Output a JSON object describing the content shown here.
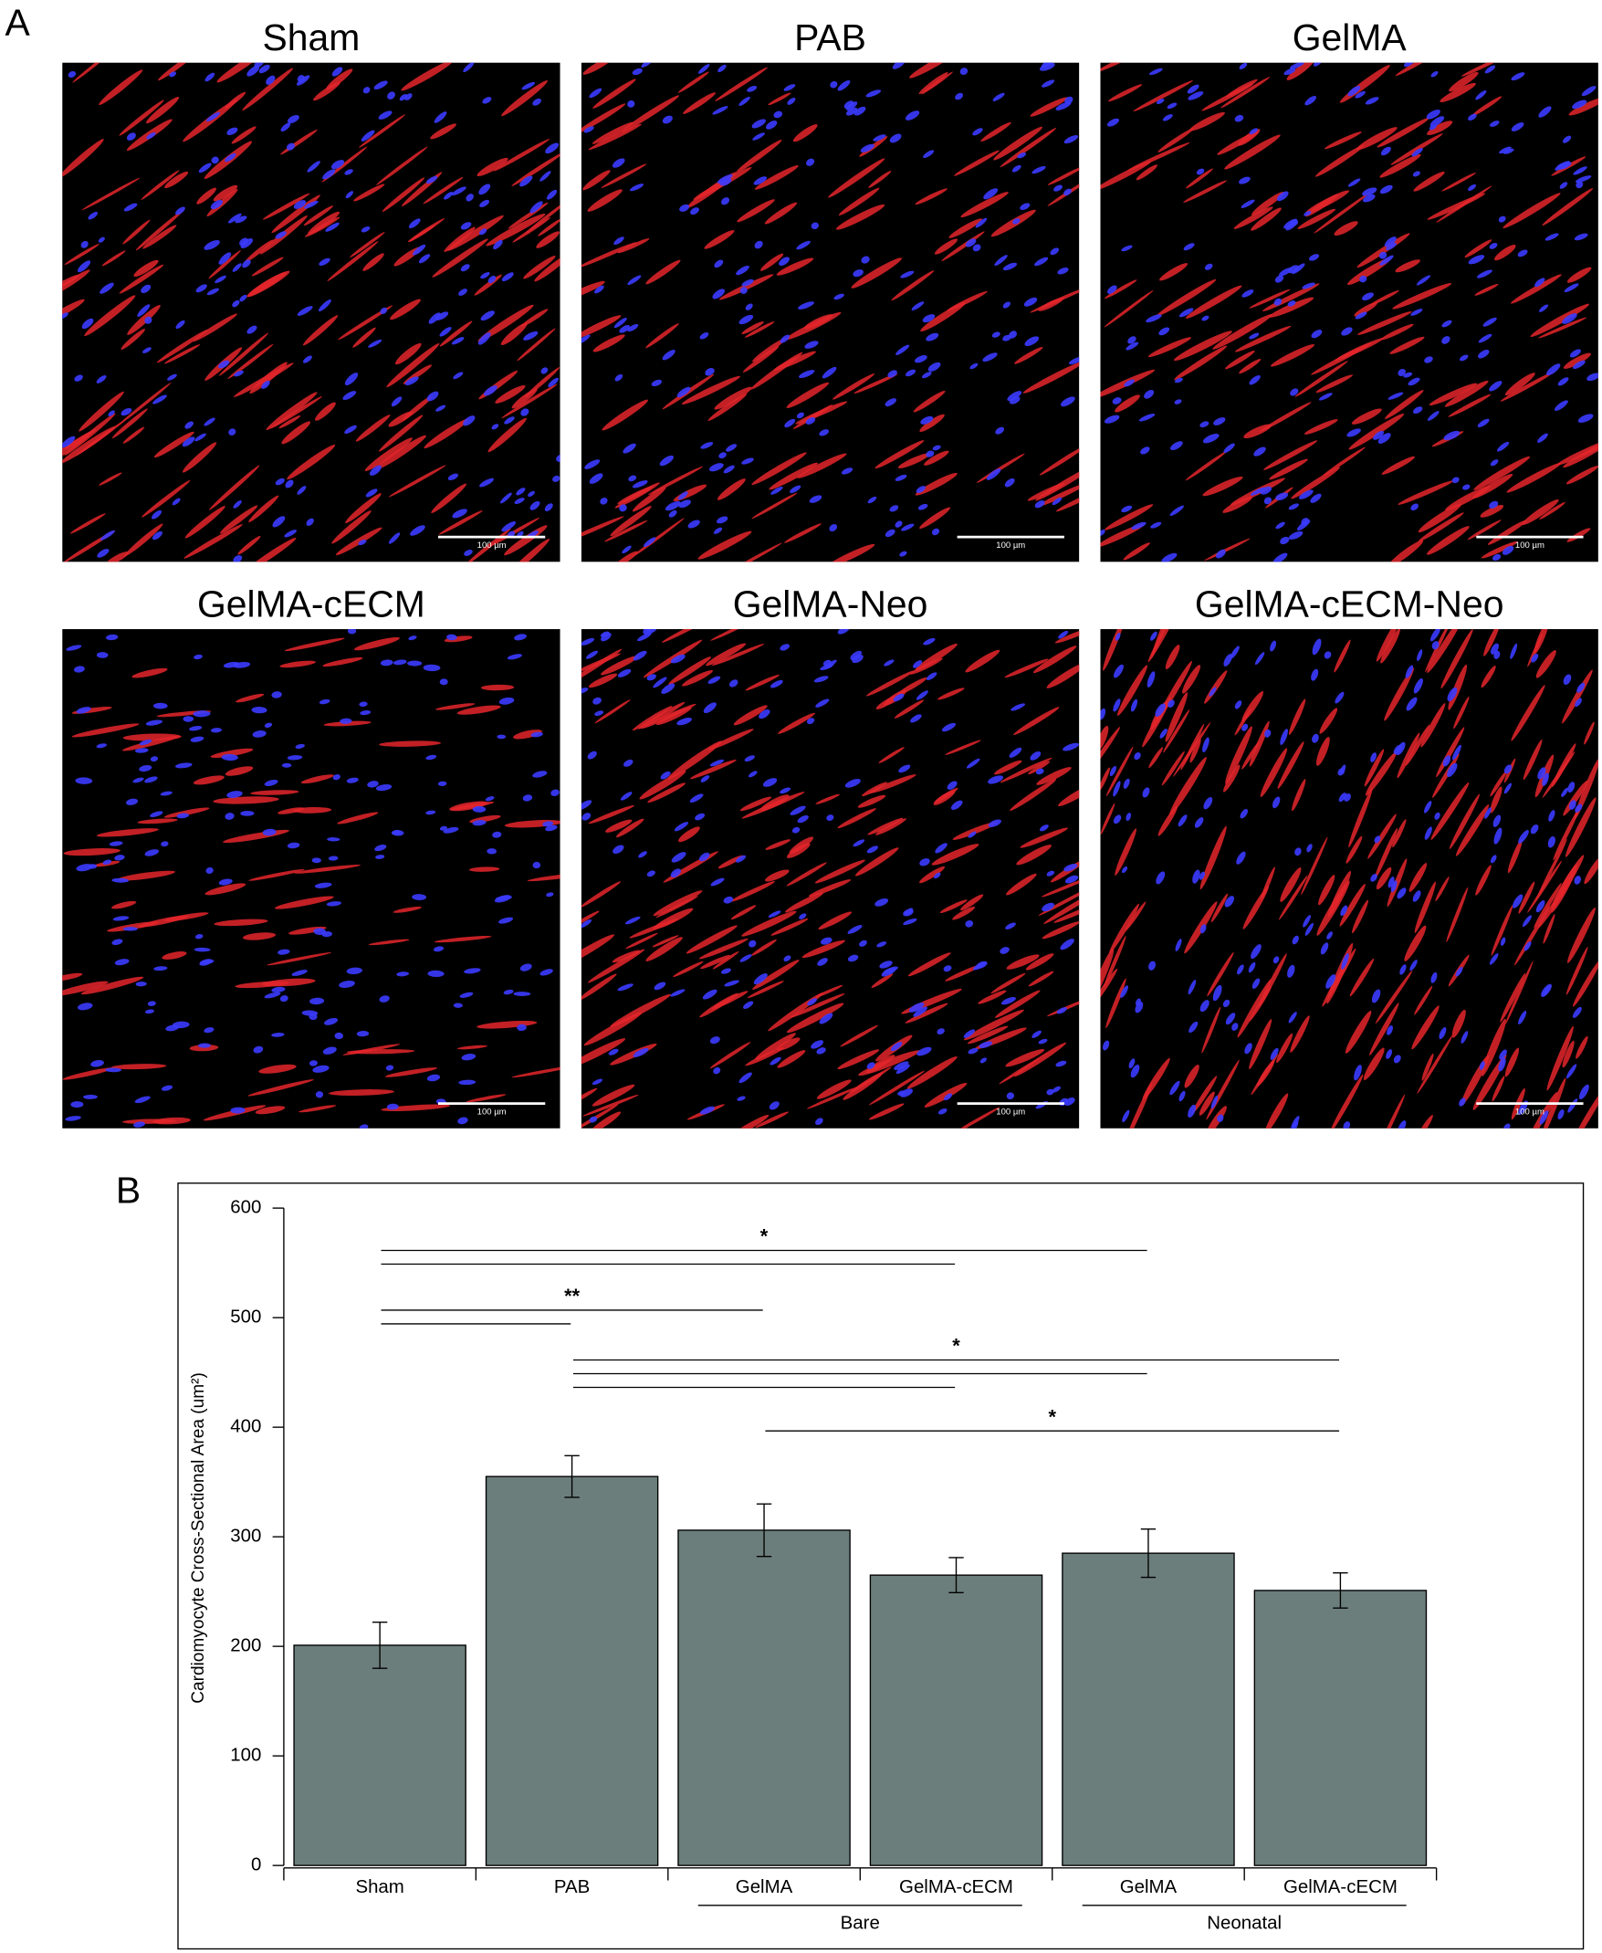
{
  "panel_a": {
    "label": "A",
    "images": [
      {
        "title": "Sham",
        "scale_bar": "100 µm"
      },
      {
        "title": "PAB",
        "scale_bar": "100 µm"
      },
      {
        "title": "GelMA",
        "scale_bar": "100 µm"
      },
      {
        "title": "GelMA-cECM",
        "scale_bar": "100 µm"
      },
      {
        "title": "GelMA-Neo",
        "scale_bar": "100 µm"
      },
      {
        "title": "GelMA-cECM-Neo",
        "scale_bar": "100 µm"
      }
    ]
  },
  "panel_b_label": "B",
  "chart_data": {
    "type": "bar",
    "ylabel": "Cardiomyocyte Cross-Sectional Area (um²)",
    "categories": [
      "Sham",
      "PAB",
      "GelMA",
      "GelMA-cECM",
      "GelMA",
      "GelMA-cECM"
    ],
    "values": [
      201,
      355,
      306,
      265,
      285,
      251
    ],
    "errors": [
      21,
      19,
      24,
      16,
      22,
      16
    ],
    "color": "#6b7e7b",
    "ylim": [
      0,
      600
    ],
    "yticks": [
      0,
      100,
      200,
      300,
      400,
      500,
      600
    ],
    "groups": [
      {
        "label": "Bare",
        "span": [
          2,
          3
        ]
      },
      {
        "label": "Neonatal",
        "span": [
          4,
          5
        ]
      }
    ],
    "significance": [
      {
        "label": "*",
        "pairs": [
          [
            0,
            4
          ],
          [
            0,
            3
          ]
        ]
      },
      {
        "label": "**",
        "pairs": [
          [
            0,
            2
          ],
          [
            0,
            1
          ]
        ]
      },
      {
        "label": "*",
        "pairs": [
          [
            1,
            5
          ],
          [
            1,
            4
          ],
          [
            1,
            3
          ]
        ]
      },
      {
        "label": "*",
        "pairs": [
          [
            2,
            5
          ]
        ]
      }
    ]
  }
}
